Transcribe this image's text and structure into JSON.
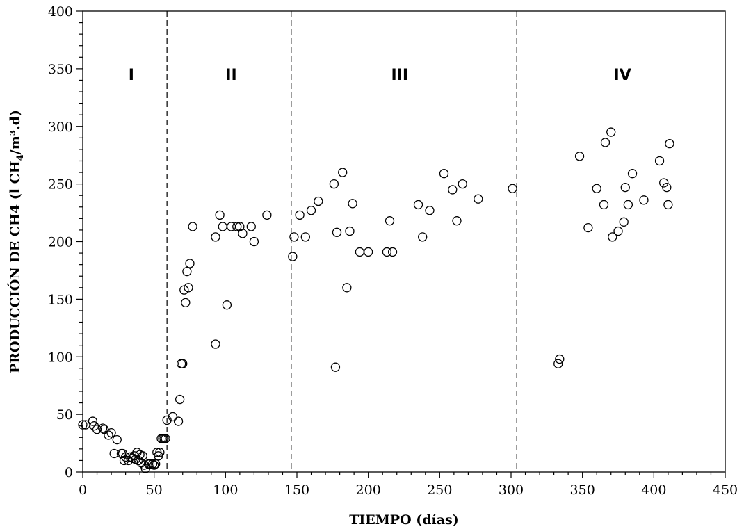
{
  "chart_data": {
    "type": "scatter",
    "title": "",
    "xlabel": "TIEMPO (días)",
    "ylabel_main": "PRODUCCIÓN DE CH4 (l CH",
    "ylabel_sub": "4",
    "ylabel_tail": "/m³.d)",
    "xlim": [
      0,
      450
    ],
    "ylim": [
      0,
      400
    ],
    "x_ticks": [
      0,
      50,
      100,
      150,
      200,
      250,
      300,
      350,
      400,
      450
    ],
    "y_ticks": [
      0,
      50,
      100,
      150,
      200,
      250,
      300,
      350,
      400
    ],
    "grid": false,
    "legend": "none",
    "marker": "open-circle",
    "phase_boundaries": [
      59,
      146,
      304
    ],
    "phases": [
      {
        "label": "I",
        "x": 34
      },
      {
        "label": "II",
        "x": 104
      },
      {
        "label": "III",
        "x": 222
      },
      {
        "label": "IV",
        "x": 378
      }
    ],
    "phase_label_y": 345,
    "points": [
      [
        0,
        41
      ],
      [
        2,
        41
      ],
      [
        7,
        44
      ],
      [
        8,
        40
      ],
      [
        10,
        37
      ],
      [
        14,
        38
      ],
      [
        15,
        37
      ],
      [
        18,
        32
      ],
      [
        20,
        34
      ],
      [
        22,
        16
      ],
      [
        24,
        28
      ],
      [
        27,
        16
      ],
      [
        28,
        16
      ],
      [
        29,
        10
      ],
      [
        30,
        13
      ],
      [
        32,
        10
      ],
      [
        33,
        13
      ],
      [
        35,
        12
      ],
      [
        36,
        14
      ],
      [
        37,
        11
      ],
      [
        38,
        17
      ],
      [
        39,
        10
      ],
      [
        40,
        15
      ],
      [
        41,
        8
      ],
      [
        42,
        14
      ],
      [
        43,
        6
      ],
      [
        44,
        3
      ],
      [
        46,
        7
      ],
      [
        47,
        7
      ],
      [
        49,
        7
      ],
      [
        50,
        6
      ],
      [
        51,
        7
      ],
      [
        52,
        17
      ],
      [
        53,
        14
      ],
      [
        54,
        17
      ],
      [
        55,
        29
      ],
      [
        56,
        29
      ],
      [
        57,
        29
      ],
      [
        58,
        29
      ],
      [
        59,
        45
      ],
      [
        63,
        48
      ],
      [
        67,
        44
      ],
      [
        68,
        63
      ],
      [
        69,
        94
      ],
      [
        70,
        94
      ],
      [
        71,
        158
      ],
      [
        72,
        147
      ],
      [
        73,
        174
      ],
      [
        74,
        160
      ],
      [
        75,
        181
      ],
      [
        77,
        213
      ],
      [
        93,
        111
      ],
      [
        93,
        204
      ],
      [
        96,
        223
      ],
      [
        98,
        213
      ],
      [
        101,
        145
      ],
      [
        104,
        213
      ],
      [
        108,
        213
      ],
      [
        110,
        213
      ],
      [
        112,
        207
      ],
      [
        118,
        213
      ],
      [
        120,
        200
      ],
      [
        129,
        223
      ],
      [
        147,
        187
      ],
      [
        148,
        204
      ],
      [
        152,
        223
      ],
      [
        156,
        204
      ],
      [
        160,
        227
      ],
      [
        165,
        235
      ],
      [
        176,
        250
      ],
      [
        177,
        91
      ],
      [
        178,
        208
      ],
      [
        182,
        260
      ],
      [
        185,
        160
      ],
      [
        187,
        209
      ],
      [
        189,
        233
      ],
      [
        194,
        191
      ],
      [
        200,
        191
      ],
      [
        213,
        191
      ],
      [
        215,
        218
      ],
      [
        217,
        191
      ],
      [
        235,
        232
      ],
      [
        238,
        204
      ],
      [
        243,
        227
      ],
      [
        253,
        259
      ],
      [
        259,
        245
      ],
      [
        262,
        218
      ],
      [
        266,
        250
      ],
      [
        277,
        237
      ],
      [
        301,
        246
      ],
      [
        333,
        94
      ],
      [
        334,
        98
      ],
      [
        348,
        274
      ],
      [
        354,
        212
      ],
      [
        360,
        246
      ],
      [
        365,
        232
      ],
      [
        366,
        286
      ],
      [
        370,
        295
      ],
      [
        371,
        204
      ],
      [
        375,
        209
      ],
      [
        379,
        217
      ],
      [
        380,
        247
      ],
      [
        382,
        232
      ],
      [
        385,
        259
      ],
      [
        393,
        236
      ],
      [
        404,
        270
      ],
      [
        407,
        251
      ],
      [
        409,
        247
      ],
      [
        410,
        232
      ],
      [
        411,
        285
      ]
    ]
  }
}
